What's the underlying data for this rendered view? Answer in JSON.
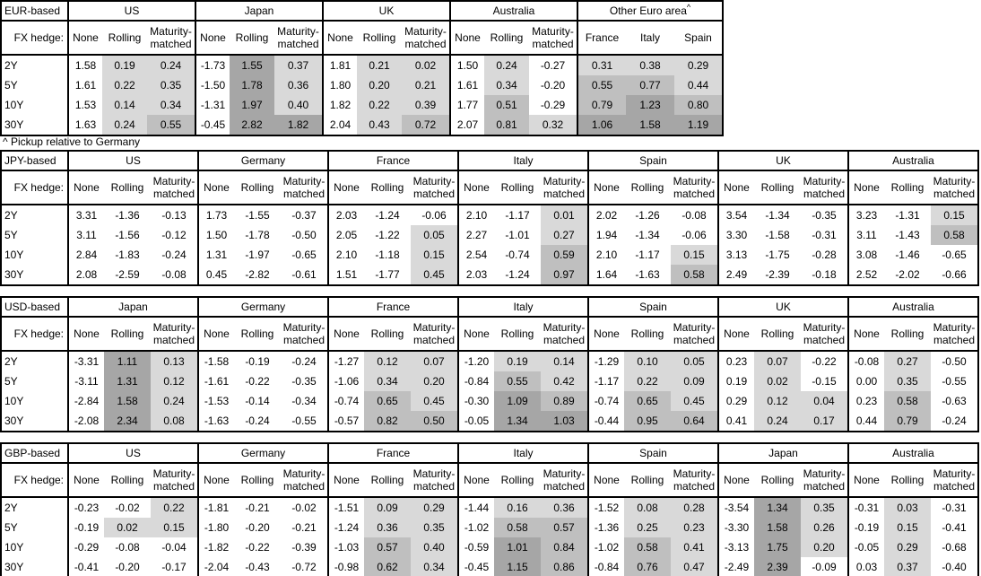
{
  "hedge_row_label": "FX hedge:",
  "row_labels": [
    "2Y",
    "5Y",
    "10Y",
    "30Y"
  ],
  "hedge_cols": [
    "None",
    "Rolling",
    "Maturity-matched"
  ],
  "colors": {
    "background": "#ffffff",
    "border": "#000000",
    "shade_light": "#d9d9d9",
    "shade_medium": "#bfbfbf",
    "shade_dark": "#a6a6a6"
  },
  "shading_rule": "hedged columns shaded by positive value: 0-0.5 light, 0.5-1 medium, >1 dark",
  "chart_data": [
    {
      "type": "table",
      "title": "EUR-based",
      "footnote": "^ Pickup relative to Germany",
      "groups": [
        {
          "name": "US",
          "rows": [
            [
              "1.58",
              "0.19",
              "0.24"
            ],
            [
              "1.61",
              "0.22",
              "0.35"
            ],
            [
              "1.53",
              "0.14",
              "0.34"
            ],
            [
              "1.63",
              "0.24",
              "0.55"
            ]
          ]
        },
        {
          "name": "Japan",
          "rows": [
            [
              "-1.73",
              "1.55",
              "0.37"
            ],
            [
              "-1.50",
              "1.78",
              "0.36"
            ],
            [
              "-1.31",
              "1.97",
              "0.40"
            ],
            [
              "-0.45",
              "2.82",
              "1.82"
            ]
          ]
        },
        {
          "name": "UK",
          "rows": [
            [
              "1.81",
              "0.21",
              "0.02"
            ],
            [
              "1.80",
              "0.20",
              "0.21"
            ],
            [
              "1.82",
              "0.22",
              "0.39"
            ],
            [
              "2.04",
              "0.43",
              "0.72"
            ]
          ]
        },
        {
          "name": "Australia",
          "rows": [
            [
              "1.50",
              "0.24",
              "-0.27"
            ],
            [
              "1.61",
              "0.34",
              "-0.20"
            ],
            [
              "1.77",
              "0.51",
              "-0.29"
            ],
            [
              "2.07",
              "0.81",
              "0.32"
            ]
          ]
        },
        {
          "name": "Other Euro area",
          "sup": "^",
          "cols": [
            "France",
            "Italy",
            "Spain"
          ],
          "rows": [
            [
              "0.31",
              "0.38",
              "0.29"
            ],
            [
              "0.55",
              "0.77",
              "0.44"
            ],
            [
              "0.79",
              "1.23",
              "0.80"
            ],
            [
              "1.06",
              "1.58",
              "1.19"
            ]
          ]
        }
      ]
    },
    {
      "type": "table",
      "title": "JPY-based",
      "groups": [
        {
          "name": "US",
          "rows": [
            [
              "3.31",
              "-1.36",
              "-0.13"
            ],
            [
              "3.11",
              "-1.56",
              "-0.12"
            ],
            [
              "2.84",
              "-1.83",
              "-0.24"
            ],
            [
              "2.08",
              "-2.59",
              "-0.08"
            ]
          ]
        },
        {
          "name": "Germany",
          "rows": [
            [
              "1.73",
              "-1.55",
              "-0.37"
            ],
            [
              "1.50",
              "-1.78",
              "-0.50"
            ],
            [
              "1.31",
              "-1.97",
              "-0.65"
            ],
            [
              "0.45",
              "-2.82",
              "-0.61"
            ]
          ]
        },
        {
          "name": "France",
          "rows": [
            [
              "2.03",
              "-1.24",
              "-0.06"
            ],
            [
              "2.05",
              "-1.22",
              "0.05"
            ],
            [
              "2.10",
              "-1.18",
              "0.15"
            ],
            [
              "1.51",
              "-1.77",
              "0.45"
            ]
          ]
        },
        {
          "name": "Italy",
          "rows": [
            [
              "2.10",
              "-1.17",
              "0.01"
            ],
            [
              "2.27",
              "-1.01",
              "0.27"
            ],
            [
              "2.54",
              "-0.74",
              "0.59"
            ],
            [
              "2.03",
              "-1.24",
              "0.97"
            ]
          ]
        },
        {
          "name": "Spain",
          "rows": [
            [
              "2.02",
              "-1.26",
              "-0.08"
            ],
            [
              "1.94",
              "-1.34",
              "-0.06"
            ],
            [
              "2.10",
              "-1.17",
              "0.15"
            ],
            [
              "1.64",
              "-1.63",
              "0.58"
            ]
          ]
        },
        {
          "name": "UK",
          "rows": [
            [
              "3.54",
              "-1.34",
              "-0.35"
            ],
            [
              "3.30",
              "-1.58",
              "-0.31"
            ],
            [
              "3.13",
              "-1.75",
              "-0.28"
            ],
            [
              "2.49",
              "-2.39",
              "-0.18"
            ]
          ]
        },
        {
          "name": "Australia",
          "rows": [
            [
              "3.23",
              "-1.31",
              "0.15"
            ],
            [
              "3.11",
              "-1.43",
              "0.58"
            ],
            [
              "3.08",
              "-1.46",
              "-0.65"
            ],
            [
              "2.52",
              "-2.02",
              "-0.66"
            ]
          ]
        }
      ]
    },
    {
      "type": "table",
      "title": "USD-based",
      "groups": [
        {
          "name": "Japan",
          "rows": [
            [
              "-3.31",
              "1.11",
              "0.13"
            ],
            [
              "-3.11",
              "1.31",
              "0.12"
            ],
            [
              "-2.84",
              "1.58",
              "0.24"
            ],
            [
              "-2.08",
              "2.34",
              "0.08"
            ]
          ]
        },
        {
          "name": "Germany",
          "rows": [
            [
              "-1.58",
              "-0.19",
              "-0.24"
            ],
            [
              "-1.61",
              "-0.22",
              "-0.35"
            ],
            [
              "-1.53",
              "-0.14",
              "-0.34"
            ],
            [
              "-1.63",
              "-0.24",
              "-0.55"
            ]
          ]
        },
        {
          "name": "France",
          "rows": [
            [
              "-1.27",
              "0.12",
              "0.07"
            ],
            [
              "-1.06",
              "0.34",
              "0.20"
            ],
            [
              "-0.74",
              "0.65",
              "0.45"
            ],
            [
              "-0.57",
              "0.82",
              "0.50"
            ]
          ]
        },
        {
          "name": "Italy",
          "rows": [
            [
              "-1.20",
              "0.19",
              "0.14"
            ],
            [
              "-0.84",
              "0.55",
              "0.42"
            ],
            [
              "-0.30",
              "1.09",
              "0.89"
            ],
            [
              "-0.05",
              "1.34",
              "1.03"
            ]
          ]
        },
        {
          "name": "Spain",
          "rows": [
            [
              "-1.29",
              "0.10",
              "0.05"
            ],
            [
              "-1.17",
              "0.22",
              "0.09"
            ],
            [
              "-0.74",
              "0.65",
              "0.45"
            ],
            [
              "-0.44",
              "0.95",
              "0.64"
            ]
          ]
        },
        {
          "name": "UK",
          "rows": [
            [
              "0.23",
              "0.07",
              "-0.22"
            ],
            [
              "0.19",
              "0.02",
              "-0.15"
            ],
            [
              "0.29",
              "0.12",
              "0.04"
            ],
            [
              "0.41",
              "0.24",
              "0.17"
            ]
          ]
        },
        {
          "name": "Australia",
          "rows": [
            [
              "-0.08",
              "0.27",
              "-0.50"
            ],
            [
              "0.00",
              "0.35",
              "-0.55"
            ],
            [
              "0.23",
              "0.58",
              "-0.63"
            ],
            [
              "0.44",
              "0.79",
              "-0.24"
            ]
          ]
        }
      ]
    },
    {
      "type": "table",
      "title": "GBP-based",
      "groups": [
        {
          "name": "US",
          "rows": [
            [
              "-0.23",
              "-0.02",
              "0.22"
            ],
            [
              "-0.19",
              "0.02",
              "0.15"
            ],
            [
              "-0.29",
              "-0.08",
              "-0.04"
            ],
            [
              "-0.41",
              "-0.20",
              "-0.17"
            ]
          ]
        },
        {
          "name": "Germany",
          "rows": [
            [
              "-1.81",
              "-0.21",
              "-0.02"
            ],
            [
              "-1.80",
              "-0.20",
              "-0.21"
            ],
            [
              "-1.82",
              "-0.22",
              "-0.39"
            ],
            [
              "-2.04",
              "-0.43",
              "-0.72"
            ]
          ]
        },
        {
          "name": "France",
          "rows": [
            [
              "-1.51",
              "0.09",
              "0.29"
            ],
            [
              "-1.24",
              "0.36",
              "0.35"
            ],
            [
              "-1.03",
              "0.57",
              "0.40"
            ],
            [
              "-0.98",
              "0.62",
              "0.34"
            ]
          ]
        },
        {
          "name": "Italy",
          "rows": [
            [
              "-1.44",
              "0.16",
              "0.36"
            ],
            [
              "-1.02",
              "0.58",
              "0.57"
            ],
            [
              "-0.59",
              "1.01",
              "0.84"
            ],
            [
              "-0.45",
              "1.15",
              "0.86"
            ]
          ]
        },
        {
          "name": "Spain",
          "rows": [
            [
              "-1.52",
              "0.08",
              "0.28"
            ],
            [
              "-1.36",
              "0.25",
              "0.23"
            ],
            [
              "-1.02",
              "0.58",
              "0.41"
            ],
            [
              "-0.84",
              "0.76",
              "0.47"
            ]
          ]
        },
        {
          "name": "Japan",
          "rows": [
            [
              "-3.54",
              "1.34",
              "0.35"
            ],
            [
              "-3.30",
              "1.58",
              "0.26"
            ],
            [
              "-3.13",
              "1.75",
              "0.20"
            ],
            [
              "-2.49",
              "2.39",
              "-0.09"
            ]
          ]
        },
        {
          "name": "Australia",
          "rows": [
            [
              "-0.31",
              "0.03",
              "-0.31"
            ],
            [
              "-0.19",
              "0.15",
              "-0.41"
            ],
            [
              "-0.05",
              "0.29",
              "-0.68"
            ],
            [
              "0.03",
              "0.37",
              "-0.40"
            ]
          ]
        }
      ]
    }
  ]
}
